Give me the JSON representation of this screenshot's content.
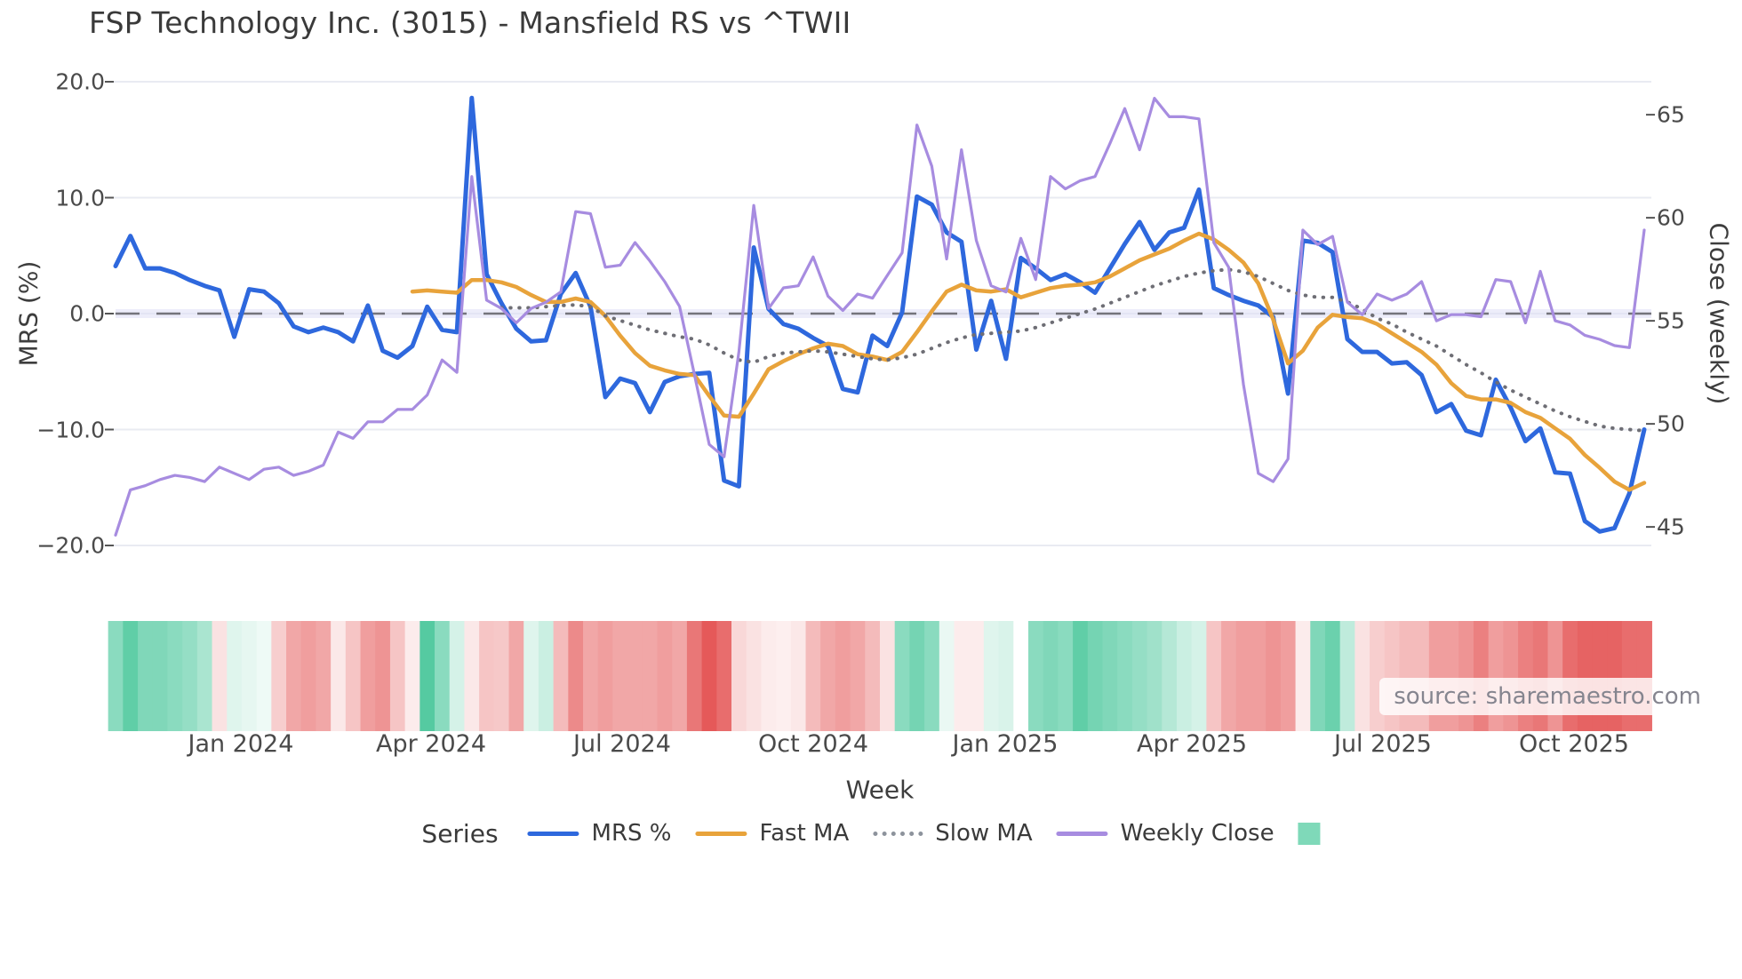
{
  "watermark": "source: sharemaestro.com",
  "legend": {
    "title": "Series",
    "items": [
      {
        "label": "MRS %",
        "type": "line",
        "color": "#2e68dd"
      },
      {
        "label": "Fast MA",
        "type": "line",
        "color": "#e8a33b"
      },
      {
        "label": "Slow MA",
        "type": "dotted",
        "color": "#8d939c"
      },
      {
        "label": "Weekly Close",
        "type": "line",
        "color": "#a78ce0"
      },
      {
        "label": "",
        "type": "square",
        "color": "#7fd9b9"
      }
    ]
  },
  "chart_data": {
    "type": "line",
    "title": "FSP Technology Inc. (3015) - Mansfield RS vs ^TWII",
    "xlabel": "Week",
    "ylabel_left": "MRS (%)",
    "ylabel_right": "Close (weekly)",
    "left_axis": {
      "ticks": [
        20.0,
        10.0,
        0.0,
        -10.0,
        -20.0
      ],
      "tick_labels": [
        "20.0",
        "10.0",
        "0.0",
        "−10.0",
        "−20.0"
      ],
      "ylim": [
        -20.9,
        21.6
      ]
    },
    "right_axis": {
      "ticks": [
        65,
        60,
        55,
        50,
        45
      ],
      "tick_labels": [
        "65",
        "60",
        "55",
        "50",
        "45"
      ],
      "ylim": [
        43.6,
        66.8
      ]
    },
    "x_axis": {
      "tick_labels": [
        "Jan 2024",
        "Apr 2024",
        "Jul 2024",
        "Oct 2024",
        "Jan 2025",
        "Apr 2025",
        "Jul 2025",
        "Oct 2025"
      ],
      "tick_weeks": [
        8.44,
        21.26,
        34.13,
        47.01,
        59.94,
        72.52,
        85.39,
        98.27
      ],
      "n_weeks": 104
    },
    "zero_line": {
      "mrs": 0.0,
      "close_equivalent": 55.35,
      "style": "dashed",
      "color": "#74747c"
    },
    "grid_color": "#e9ebf2",
    "series": [
      {
        "name": "MRS %",
        "axis": "left",
        "color": "#2e68dd",
        "width": 5,
        "style": "solid",
        "values": [
          4.1,
          6.7,
          3.9,
          3.9,
          3.5,
          2.9,
          2.4,
          2.0,
          -2.0,
          2.1,
          1.9,
          0.9,
          -1.1,
          -1.6,
          -1.2,
          -1.6,
          -2.4,
          0.7,
          -3.2,
          -3.8,
          -2.8,
          0.6,
          -1.4,
          -1.6,
          18.6,
          3.4,
          0.9,
          -1.3,
          -2.4,
          -2.3,
          1.7,
          3.5,
          0.6,
          -7.2,
          -5.6,
          -6.0,
          -8.5,
          -5.9,
          -5.4,
          -5.2,
          -5.1,
          -14.4,
          -14.9,
          5.7,
          0.4,
          -0.9,
          -1.3,
          -2.1,
          -2.8,
          -6.5,
          -6.8,
          -1.9,
          -2.8,
          0.1,
          10.1,
          9.4,
          7.0,
          6.2,
          -3.1,
          1.1,
          -3.9,
          4.8,
          3.9,
          2.9,
          3.4,
          2.7,
          1.8,
          3.9,
          6.0,
          7.9,
          5.5,
          7.0,
          7.4,
          10.7,
          2.2,
          1.6,
          1.1,
          0.7,
          -0.3,
          -6.9,
          6.3,
          6.1,
          5.3,
          -2.2,
          -3.3,
          -3.3,
          -4.3,
          -4.2,
          -5.3,
          -8.5,
          -7.8,
          -10.1,
          -10.5,
          -5.7,
          -8.1,
          -11.0,
          -9.9,
          -13.7,
          -13.8,
          -17.9,
          -18.8,
          -18.5,
          -15.5,
          -10.0
        ]
      },
      {
        "name": "Fast MA",
        "axis": "left",
        "color": "#e8a33b",
        "width": 4.5,
        "style": "solid",
        "values": [
          null,
          null,
          null,
          null,
          null,
          null,
          null,
          null,
          null,
          null,
          null,
          null,
          null,
          null,
          null,
          null,
          null,
          null,
          null,
          null,
          1.9,
          2.0,
          1.9,
          1.8,
          2.9,
          2.9,
          2.7,
          2.3,
          1.6,
          1.0,
          1.0,
          1.3,
          1.0,
          -0.2,
          -1.9,
          -3.4,
          -4.5,
          -4.9,
          -5.2,
          -5.3,
          -7.1,
          -8.8,
          -8.9,
          -6.9,
          -4.8,
          -4.1,
          -3.5,
          -3.0,
          -2.6,
          -2.8,
          -3.5,
          -3.7,
          -4.0,
          -3.3,
          -1.6,
          0.2,
          1.9,
          2.5,
          2.0,
          1.9,
          2.1,
          1.4,
          1.8,
          2.2,
          2.4,
          2.5,
          2.7,
          3.2,
          3.9,
          4.6,
          5.1,
          5.6,
          6.3,
          6.9,
          6.4,
          5.5,
          4.4,
          2.6,
          -0.5,
          -4.3,
          -3.2,
          -1.2,
          -0.1,
          -0.3,
          -0.4,
          -0.9,
          -1.7,
          -2.5,
          -3.3,
          -4.4,
          -6.0,
          -7.1,
          -7.4,
          -7.4,
          -7.7,
          -8.5,
          -9.0,
          -9.9,
          -10.8,
          -12.2,
          -13.3,
          -14.5,
          -15.2,
          -14.6
        ]
      },
      {
        "name": "Slow MA",
        "axis": "left",
        "color": "#6e6e75",
        "width": 4,
        "style": "dotted",
        "values": [
          null,
          null,
          null,
          null,
          null,
          null,
          null,
          null,
          null,
          null,
          null,
          null,
          null,
          null,
          null,
          null,
          null,
          null,
          null,
          null,
          null,
          null,
          null,
          null,
          null,
          null,
          0.5,
          0.5,
          0.5,
          0.6,
          0.7,
          0.75,
          0.6,
          -0.2,
          -0.6,
          -1.0,
          -1.4,
          -1.7,
          -2.0,
          -2.2,
          -2.7,
          -3.4,
          -4.0,
          -4.2,
          -3.7,
          -3.4,
          -3.3,
          -3.2,
          -3.3,
          -3.5,
          -3.7,
          -3.9,
          -4.0,
          -3.8,
          -3.5,
          -3.0,
          -2.5,
          -2.1,
          -1.8,
          -1.7,
          -1.6,
          -1.5,
          -1.2,
          -0.8,
          -0.4,
          0.0,
          0.4,
          0.9,
          1.4,
          1.9,
          2.4,
          2.8,
          3.2,
          3.5,
          3.7,
          3.8,
          3.6,
          3.2,
          2.6,
          2.0,
          1.6,
          1.4,
          1.4,
          1.0,
          0.4,
          -0.4,
          -0.9,
          -1.6,
          -2.2,
          -2.8,
          -3.6,
          -4.4,
          -5.1,
          -5.9,
          -6.6,
          -7.2,
          -7.8,
          -8.4,
          -8.9,
          -9.3,
          -9.7,
          -9.9,
          -10.0,
          -10.1
        ]
      },
      {
        "name": "Weekly Close",
        "axis": "right",
        "color": "#a78ce0",
        "width": 3.2,
        "style": "solid",
        "values": [
          44.6,
          46.8,
          47.0,
          47.3,
          47.5,
          47.4,
          47.2,
          47.9,
          47.6,
          47.3,
          47.8,
          47.9,
          47.5,
          47.7,
          48.0,
          49.6,
          49.3,
          50.1,
          50.1,
          50.7,
          50.7,
          51.4,
          53.1,
          52.5,
          62.0,
          56.0,
          55.6,
          54.9,
          55.6,
          55.9,
          56.4,
          60.3,
          60.2,
          57.6,
          57.7,
          58.8,
          57.9,
          56.9,
          55.7,
          52.4,
          49.0,
          48.4,
          53.5,
          60.6,
          55.6,
          56.6,
          56.7,
          58.1,
          56.2,
          55.5,
          56.3,
          56.1,
          57.2,
          58.3,
          64.5,
          62.5,
          58.0,
          63.3,
          58.9,
          56.7,
          56.4,
          59.0,
          57.0,
          62.0,
          61.4,
          61.8,
          62.0,
          63.6,
          65.3,
          63.3,
          65.8,
          64.9,
          64.9,
          64.8,
          58.8,
          57.6,
          51.9,
          47.6,
          47.2,
          48.3,
          59.4,
          58.7,
          59.1,
          55.9,
          55.3,
          56.3,
          56.0,
          56.3,
          56.9,
          55.0,
          55.3,
          55.3,
          55.2,
          57.0,
          56.9,
          54.9,
          57.4,
          55.0,
          54.8,
          54.3,
          54.1,
          53.8,
          53.7,
          59.4
        ]
      }
    ],
    "heatmap": {
      "description": "weekly strength strip, -1 strong red .. +1 strong green, null = gap",
      "positive_color": "#2bbd8a",
      "negative_color": "#e03c3c",
      "values": [
        0.55,
        0.75,
        0.6,
        0.6,
        0.55,
        0.5,
        0.4,
        -0.15,
        0.15,
        0.12,
        0.08,
        -0.25,
        -0.45,
        -0.5,
        -0.45,
        -0.12,
        -0.3,
        -0.5,
        -0.55,
        -0.3,
        -0.1,
        0.8,
        0.55,
        0.2,
        -0.12,
        -0.3,
        -0.28,
        -0.45,
        0.15,
        0.25,
        -0.35,
        -0.6,
        -0.45,
        -0.5,
        -0.45,
        -0.45,
        -0.45,
        -0.5,
        -0.45,
        -0.7,
        -0.85,
        -0.75,
        -0.2,
        -0.15,
        -0.1,
        -0.08,
        -0.12,
        -0.35,
        -0.45,
        -0.5,
        -0.45,
        -0.35,
        -0.15,
        0.55,
        0.65,
        0.55,
        0.1,
        -0.1,
        -0.1,
        0.15,
        0.18,
        null,
        0.55,
        0.6,
        0.55,
        0.75,
        0.65,
        0.6,
        0.55,
        0.5,
        0.45,
        0.35,
        0.25,
        0.2,
        -0.3,
        -0.45,
        -0.5,
        -0.5,
        -0.55,
        -0.5,
        -0.1,
        0.6,
        0.7,
        0.3,
        -0.15,
        -0.25,
        -0.3,
        -0.35,
        -0.35,
        -0.5,
        -0.5,
        -0.55,
        -0.65,
        -0.5,
        -0.55,
        -0.65,
        -0.7,
        -0.55,
        -0.75,
        -0.8,
        -0.8,
        -0.8,
        -0.75,
        -0.75
      ]
    }
  }
}
